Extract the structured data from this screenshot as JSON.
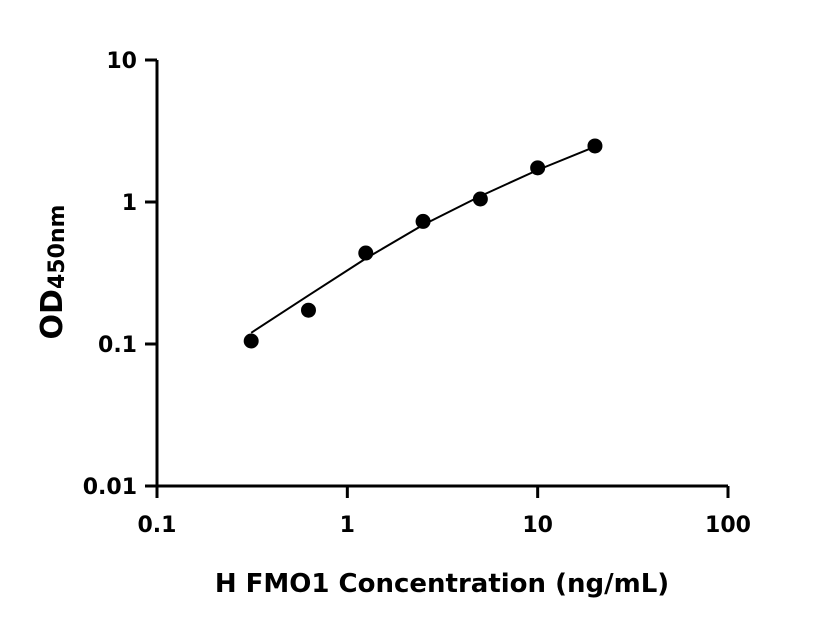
{
  "chart_data": {
    "type": "scatter",
    "title": "",
    "xlabel": "H FMO1 Concentration (ng/mL)",
    "ylabel_main": "OD",
    "ylabel_sub": "450nm",
    "x_scale": "log",
    "y_scale": "log",
    "xlim": [
      0.1,
      100
    ],
    "ylim": [
      0.01,
      10
    ],
    "x_ticks": [
      "0.1",
      "1",
      "10",
      "100"
    ],
    "y_ticks": [
      "0.01",
      "0.1",
      "1",
      "10"
    ],
    "grid": false,
    "points": [
      {
        "x": 0.3125,
        "y": 0.105
      },
      {
        "x": 0.625,
        "y": 0.173
      },
      {
        "x": 1.25,
        "y": 0.437
      },
      {
        "x": 2.5,
        "y": 0.73
      },
      {
        "x": 5,
        "y": 1.05
      },
      {
        "x": 10,
        "y": 1.74
      },
      {
        "x": 20,
        "y": 2.48
      }
    ],
    "fit_curve": [
      {
        "x": 0.3125,
        "y": 0.12
      },
      {
        "x": 0.625,
        "y": 0.22
      },
      {
        "x": 1.25,
        "y": 0.4
      },
      {
        "x": 2.5,
        "y": 0.69
      },
      {
        "x": 5,
        "y": 1.1
      },
      {
        "x": 10,
        "y": 1.68
      },
      {
        "x": 20,
        "y": 2.45
      }
    ],
    "colors": {
      "points": "#000000",
      "curve": "#000000",
      "axes": "#000000"
    }
  }
}
